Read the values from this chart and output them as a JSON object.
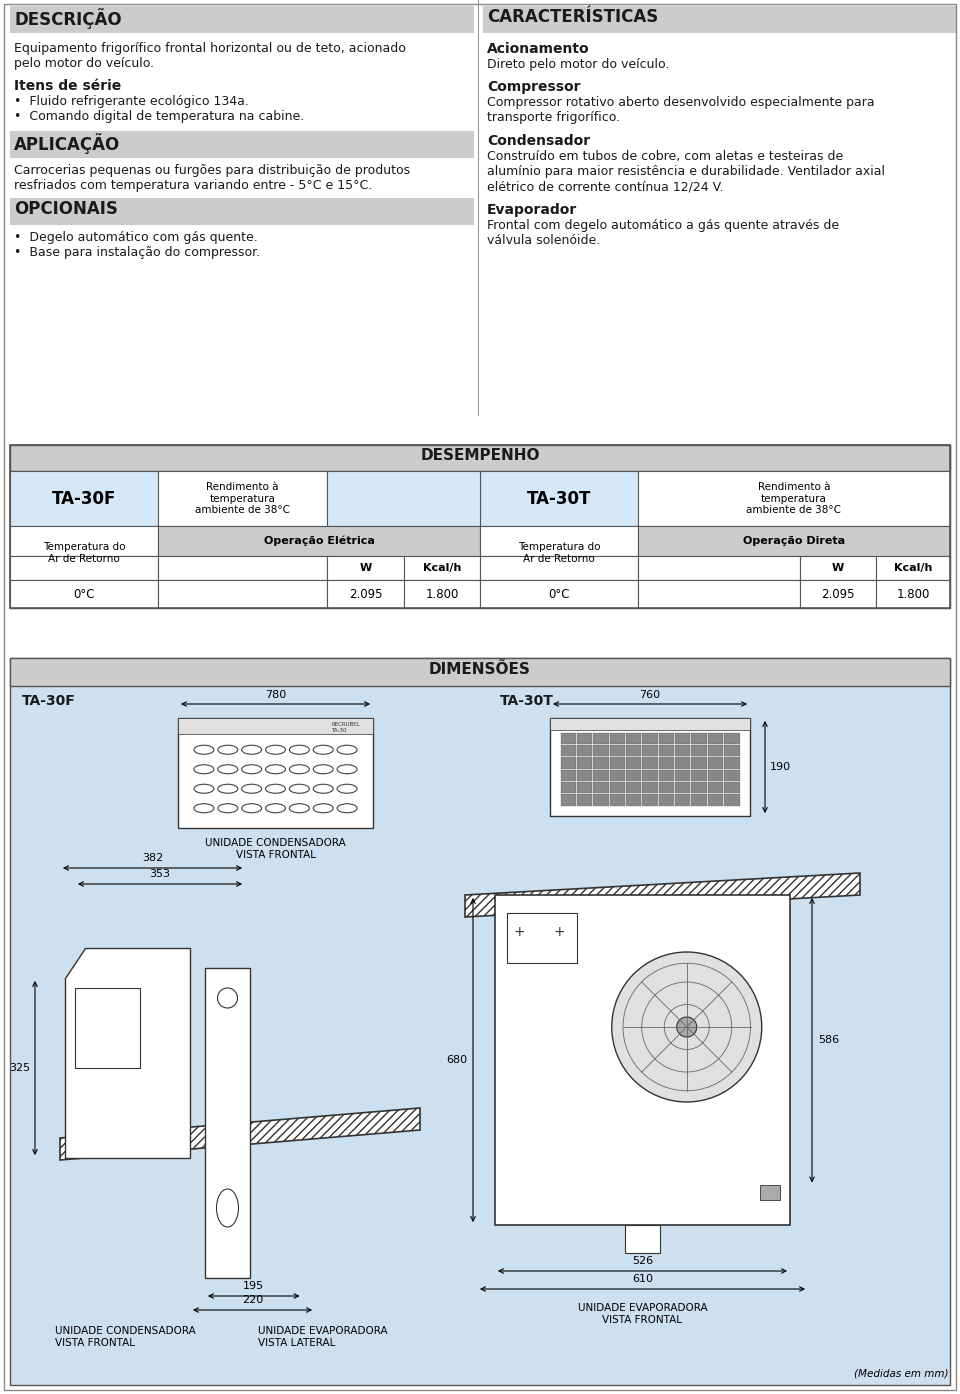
{
  "bg_color": "#cce0f0",
  "white": "#ffffff",
  "header_bg": "#cccccc",
  "table_blue": "#d4e8f8",
  "text_color": "#1a1a1a",
  "border_color": "#555555",
  "section_descricao_title": "DESCRIÇÃO",
  "desc_body": "Equipamento frigorífico frontal horizontal ou de teto, acionado\npelo motor do veículo.",
  "itens_title": "Itens de série",
  "itens_bullets": [
    "Fluido refrigerante ecológico 134a.",
    "Comando digital de temperatura na cabine."
  ],
  "aplicacao_title": "APLICAÇÃO",
  "aplicacao_body": "Carrocerias pequenas ou furgões para distribuição de produtos\nresfriados com temperatura variando entre - 5°C e 15°C.",
  "opcionais_title": "OPCIONAIS",
  "opcionais_bullets": [
    "Degelo automático com gás quente.",
    "Base para instalação do compressor."
  ],
  "caract_title": "CARACTERÍSTICAS",
  "acion_title": "Acionamento",
  "acion_body": "Direto pelo motor do veículo.",
  "compressor_title": "Compressor",
  "compressor_body": "Compressor rotativo aberto desenvolvido especialmente para\ntransporte frigorífico.",
  "condensador_title": "Condensador",
  "condensador_body": "Construído em tubos de cobre, com aletas e testeiras de\nalumínio para maior resistência e durabilidade. Ventilador axial\nelétrico de corrente contínua 12/24 V.",
  "evaporador_title": "Evaporador",
  "evaporador_body": "Frontal com degelo automático a gás quente através de\nválvula solenóide.",
  "desempenho_title": "DESEMPENHO",
  "ta30f_label": "TA-30F",
  "ta30t_label": "TA-30T",
  "rend_label": "Rendimento à\ntemperatura\nambiente de 38°C",
  "op_eletrica": "Operação Elétrica",
  "op_direta": "Operação Direta",
  "temp_ar": "Temperatura do\nAr de Retorno",
  "w_label": "W",
  "kcal_label": "Kcal/h",
  "row_temp": "0°C",
  "row_w": "2.095",
  "row_kcal": "1.800",
  "dimensoes_title": "DIMENSÕES",
  "dim_ta30f": "TA-30F",
  "dim_ta30t": "TA-30T",
  "dim_780": "780",
  "dim_760": "760",
  "dim_382": "382",
  "dim_353": "353",
  "dim_325": "325",
  "dim_195": "195",
  "dim_220": "220",
  "dim_190": "190",
  "dim_680": "680",
  "dim_586": "586",
  "dim_526": "526",
  "dim_610": "610",
  "uc_frontal": "UNIDADE CONDENSADORA\nVISTA FRONTAL",
  "ue_lateral": "UNIDADE EVAPORADORA\nVISTA LATERAL",
  "ue_frontal_right": "UNIDADE EVAPORADORA\nVISTA FRONTAL",
  "medidas": "(Medidas em mm)"
}
